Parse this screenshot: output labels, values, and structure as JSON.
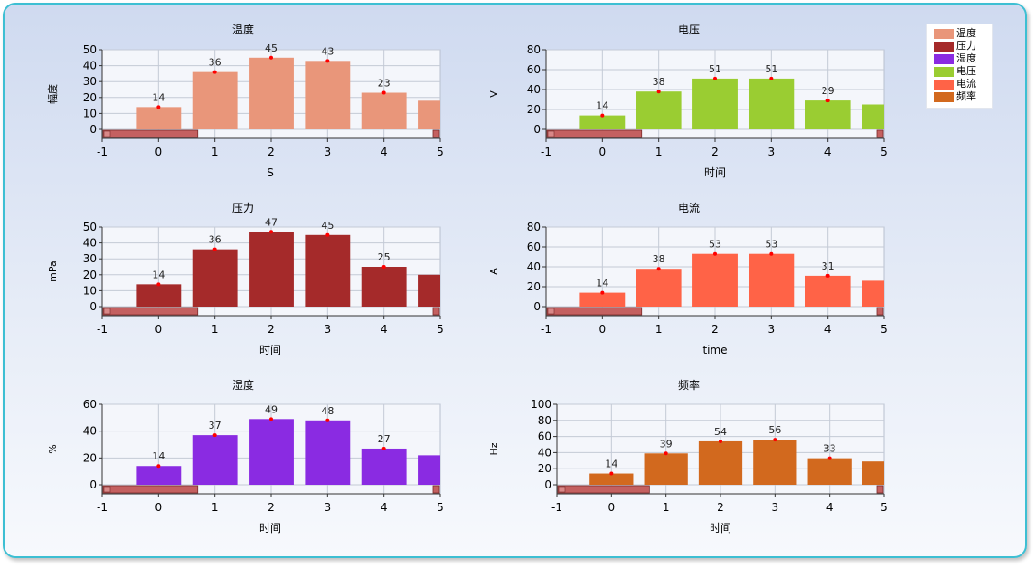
{
  "legend": {
    "items": [
      {
        "label": "温度",
        "color": "#E9967A"
      },
      {
        "label": "压力",
        "color": "#A52A2A"
      },
      {
        "label": "湿度",
        "color": "#8A2BE2"
      },
      {
        "label": "电压",
        "color": "#9ACD32"
      },
      {
        "label": "电流",
        "color": "#FF6347"
      },
      {
        "label": "频率",
        "color": "#D2691E"
      }
    ]
  },
  "chart_data": [
    {
      "type": "bar",
      "title": "温度",
      "xlabel": "S",
      "ylabel": "幅度",
      "color": "#E9967A",
      "x": [
        0,
        1,
        2,
        3,
        4,
        5
      ],
      "values": [
        14,
        36,
        45,
        43,
        23,
        18
      ],
      "data_labels": [
        "14",
        "36",
        "45",
        "43",
        "23",
        ""
      ],
      "xlim": [
        -1,
        5
      ],
      "ylim": [
        0,
        50
      ],
      "yticks": [
        0,
        10,
        20,
        30,
        40,
        50
      ],
      "xticks": [
        -1,
        0,
        1,
        2,
        3,
        4,
        5
      ],
      "grid": true
    },
    {
      "type": "bar",
      "title": "电压",
      "xlabel": "时间",
      "ylabel": "V",
      "color": "#9ACD32",
      "x": [
        0,
        1,
        2,
        3,
        4,
        5
      ],
      "values": [
        14,
        38,
        51,
        51,
        29,
        25
      ],
      "data_labels": [
        "14",
        "38",
        "51",
        "51",
        "29",
        ""
      ],
      "xlim": [
        -1,
        5
      ],
      "ylim": [
        0,
        80
      ],
      "yticks": [
        0,
        20,
        40,
        60,
        80
      ],
      "xticks": [
        -1,
        0,
        1,
        2,
        3,
        4,
        5
      ],
      "grid": true
    },
    {
      "type": "bar",
      "title": "压力",
      "xlabel": "时间",
      "ylabel": "mPa",
      "color": "#A52A2A",
      "x": [
        0,
        1,
        2,
        3,
        4,
        5
      ],
      "values": [
        14,
        36,
        47,
        45,
        25,
        20
      ],
      "data_labels": [
        "14",
        "36",
        "47",
        "45",
        "25",
        ""
      ],
      "xlim": [
        -1,
        5
      ],
      "ylim": [
        0,
        50
      ],
      "yticks": [
        0,
        10,
        20,
        30,
        40,
        50
      ],
      "xticks": [
        -1,
        0,
        1,
        2,
        3,
        4,
        5
      ],
      "grid": true
    },
    {
      "type": "bar",
      "title": "电流",
      "xlabel": "time",
      "ylabel": "A",
      "color": "#FF6347",
      "x": [
        0,
        1,
        2,
        3,
        4,
        5
      ],
      "values": [
        14,
        38,
        53,
        53,
        31,
        26
      ],
      "data_labels": [
        "14",
        "38",
        "53",
        "53",
        "31",
        ""
      ],
      "xlim": [
        -1,
        5
      ],
      "ylim": [
        0,
        80
      ],
      "yticks": [
        0,
        20,
        40,
        60,
        80
      ],
      "xticks": [
        -1,
        0,
        1,
        2,
        3,
        4,
        5
      ],
      "grid": true
    },
    {
      "type": "bar",
      "title": "湿度",
      "xlabel": "时间",
      "ylabel": "%",
      "color": "#8A2BE2",
      "x": [
        0,
        1,
        2,
        3,
        4,
        5
      ],
      "values": [
        14,
        37,
        49,
        48,
        27,
        22
      ],
      "data_labels": [
        "14",
        "37",
        "49",
        "48",
        "27",
        ""
      ],
      "xlim": [
        -1,
        5
      ],
      "ylim": [
        0,
        60
      ],
      "yticks": [
        0,
        20,
        40,
        60
      ],
      "xticks": [
        -1,
        0,
        1,
        2,
        3,
        4,
        5
      ],
      "grid": true
    },
    {
      "type": "bar",
      "title": "频率",
      "xlabel": "时间",
      "ylabel": "Hz",
      "color": "#D2691E",
      "x": [
        0,
        1,
        2,
        3,
        4,
        5
      ],
      "values": [
        14,
        39,
        54,
        56,
        33,
        29
      ],
      "data_labels": [
        "14",
        "39",
        "54",
        "56",
        "33",
        ""
      ],
      "xlim": [
        -1,
        5
      ],
      "ylim": [
        0,
        100
      ],
      "yticks": [
        0,
        20,
        40,
        60,
        80,
        100
      ],
      "xticks": [
        -1,
        0,
        1,
        2,
        3,
        4,
        5
      ],
      "grid": true
    }
  ]
}
